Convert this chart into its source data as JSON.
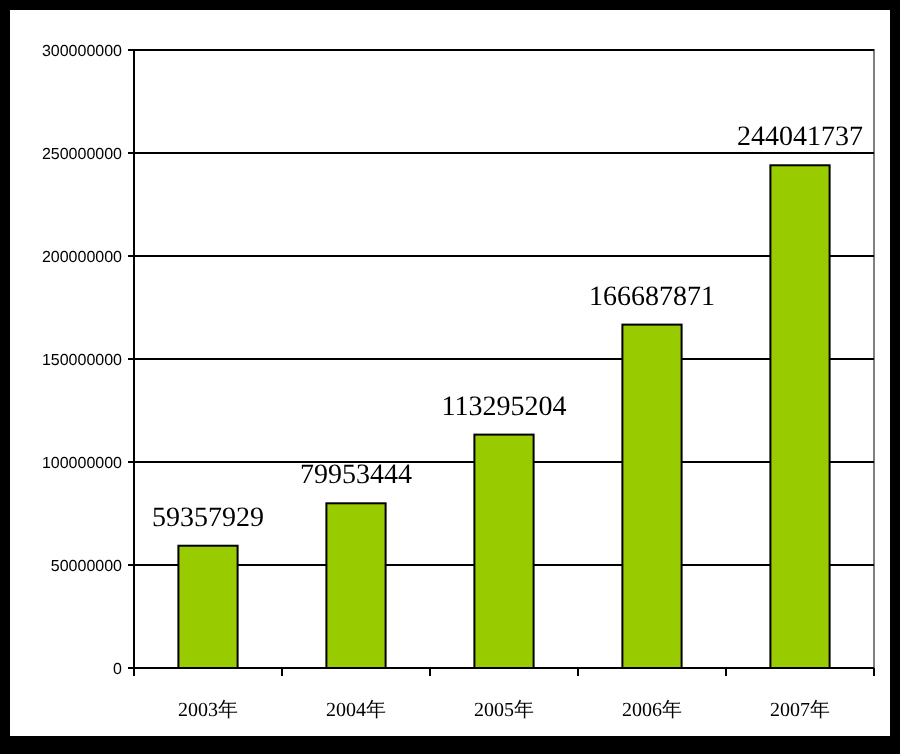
{
  "chart_data": {
    "type": "bar",
    "categories": [
      "2003年",
      "2004年",
      "2005年",
      "2006年",
      "2007年"
    ],
    "values": [
      59357929,
      79953444,
      113295204,
      166687871,
      244041737
    ],
    "color": "#99cc00",
    "ylim": [
      0,
      300000000
    ],
    "yticks": [
      0,
      50000000,
      100000000,
      150000000,
      200000000,
      250000000,
      300000000
    ],
    "grid": "y",
    "data_labels": true
  }
}
